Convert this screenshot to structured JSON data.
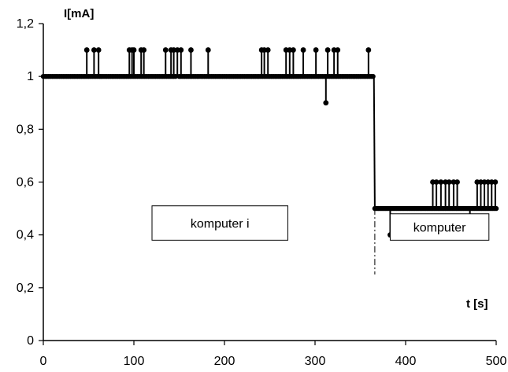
{
  "chart_data": {
    "type": "line",
    "title": "",
    "ylabel": "I[mA]",
    "xlabel": "t [s]",
    "xlim": [
      0,
      500
    ],
    "ylim": [
      0,
      1.2
    ],
    "x_ticks": [
      0,
      100,
      200,
      300,
      400,
      500
    ],
    "x_tick_labels": [
      "0",
      "100",
      "200",
      "300",
      "400",
      "500"
    ],
    "y_ticks": [
      0,
      0.2,
      0.4,
      0.6,
      0.8,
      1.0,
      1.2
    ],
    "y_tick_labels": [
      "0",
      "0,2",
      "0,4",
      "0,6",
      "0,8",
      "1",
      "1,2"
    ],
    "grid": false,
    "legend": "none",
    "series": [
      {
        "color": "#000000",
        "baseline_segments": [
          {
            "x_start": 0,
            "x_end": 147,
            "y": 1.0
          },
          {
            "x_start": 150,
            "x_end": 365,
            "y": 1.0
          },
          {
            "x_start": 366,
            "x_end": 500,
            "y": 0.5
          }
        ],
        "spikes": [
          {
            "x": 48,
            "y": 1.1
          },
          {
            "x": 56,
            "y": 1.1
          },
          {
            "x": 61,
            "y": 1.1
          },
          {
            "x": 95,
            "y": 1.1
          },
          {
            "x": 98,
            "y": 1.1
          },
          {
            "x": 100,
            "y": 1.1
          },
          {
            "x": 108,
            "y": 1.1
          },
          {
            "x": 111,
            "y": 1.1
          },
          {
            "x": 135,
            "y": 1.1
          },
          {
            "x": 141,
            "y": 1.1
          },
          {
            "x": 144,
            "y": 1.1
          },
          {
            "x": 148,
            "y": 1.1
          },
          {
            "x": 152,
            "y": 1.1
          },
          {
            "x": 163,
            "y": 1.1
          },
          {
            "x": 182,
            "y": 1.1
          },
          {
            "x": 241,
            "y": 1.1
          },
          {
            "x": 244,
            "y": 1.1
          },
          {
            "x": 248,
            "y": 1.1
          },
          {
            "x": 268,
            "y": 1.1
          },
          {
            "x": 272,
            "y": 1.1
          },
          {
            "x": 276,
            "y": 1.1
          },
          {
            "x": 287,
            "y": 1.1
          },
          {
            "x": 301,
            "y": 1.1
          },
          {
            "x": 312,
            "y": 0.9
          },
          {
            "x": 314,
            "y": 1.1
          },
          {
            "x": 321,
            "y": 1.1
          },
          {
            "x": 325,
            "y": 1.1
          },
          {
            "x": 359,
            "y": 1.1
          },
          {
            "x": 383,
            "y": 0.4
          },
          {
            "x": 430,
            "y": 0.6
          },
          {
            "x": 434,
            "y": 0.6
          },
          {
            "x": 439,
            "y": 0.6
          },
          {
            "x": 444,
            "y": 0.6
          },
          {
            "x": 448,
            "y": 0.6
          },
          {
            "x": 453,
            "y": 0.6
          },
          {
            "x": 457,
            "y": 0.6
          },
          {
            "x": 471,
            "y": 0.4
          },
          {
            "x": 479,
            "y": 0.6
          },
          {
            "x": 483,
            "y": 0.6
          },
          {
            "x": 487,
            "y": 0.6
          },
          {
            "x": 491,
            "y": 0.6
          },
          {
            "x": 495,
            "y": 0.6
          },
          {
            "x": 499,
            "y": 0.6
          }
        ]
      }
    ],
    "annotations": [
      {
        "text": "komputer i",
        "x_start": 120,
        "x_end": 270,
        "y_top": 0.51,
        "y_bottom": 0.38
      },
      {
        "text": "komputer",
        "x_start": 383,
        "x_end": 492,
        "y_top": 0.48,
        "y_bottom": 0.38
      }
    ],
    "reference_line": {
      "x": 366,
      "y_from": 0.25,
      "y_to": 0.5,
      "style": "dash-dot"
    }
  }
}
